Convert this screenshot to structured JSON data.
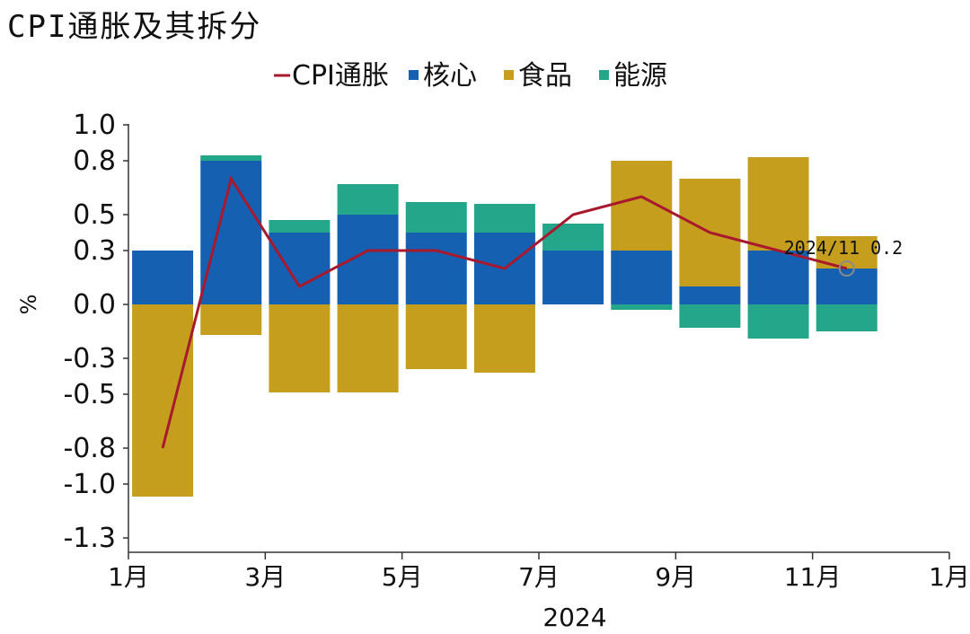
{
  "page": {
    "title": "CPI通胀及其拆分"
  },
  "colors": {
    "cpi": "#A8192E",
    "core": "#1660B2",
    "food": "#C59E1E",
    "energy": "#23A68A"
  },
  "chart_data": {
    "type": "bar",
    "stacked": true,
    "title": "CPI通胀及其拆分",
    "ylabel": "%",
    "xlabel": "2024",
    "ylim": [
      -1.3,
      1.0
    ],
    "yticks": [
      "1.0",
      "0.8",
      "0.5",
      "0.3",
      "0.0",
      "-0.3",
      "-0.5",
      "-0.8",
      "-1.0",
      "-1.3"
    ],
    "ytick_values": [
      1.0,
      0.8,
      0.5,
      0.3,
      0.0,
      -0.3,
      -0.5,
      -0.8,
      -1.0,
      -1.3
    ],
    "xticks": [
      "1月",
      "3月",
      "5月",
      "7月",
      "9月",
      "11月",
      "1月"
    ],
    "legend_position": "top",
    "grid": false,
    "categories": [
      "2024-01",
      "2024-02",
      "2024-03",
      "2024-04",
      "2024-05",
      "2024-06",
      "2024-07",
      "2024-08",
      "2024-09",
      "2024-10",
      "2024-11"
    ],
    "series": [
      {
        "name": "CPI通胀",
        "kind": "line",
        "color": "#A8192E",
        "values": [
          -0.8,
          0.7,
          0.1,
          0.3,
          0.3,
          0.2,
          0.5,
          0.6,
          0.4,
          0.3,
          0.2
        ]
      },
      {
        "name": "核心",
        "kind": "bar",
        "color": "#1660B2",
        "values": [
          0.3,
          0.8,
          0.4,
          0.5,
          0.4,
          0.4,
          0.3,
          0.3,
          0.1,
          0.3,
          0.2
        ]
      },
      {
        "name": "食品",
        "kind": "bar",
        "color": "#C59E1E",
        "values": [
          -1.07,
          -0.17,
          -0.49,
          -0.49,
          -0.36,
          -0.38,
          0.0,
          0.5,
          0.6,
          0.52,
          0.18
        ]
      },
      {
        "name": "能源",
        "kind": "bar",
        "color": "#23A68A",
        "values": [
          0.0,
          0.03,
          0.07,
          0.17,
          0.17,
          0.16,
          0.15,
          -0.03,
          -0.13,
          -0.19,
          -0.15
        ]
      }
    ],
    "annotation": {
      "label": "2024/11  0.2",
      "x": "2024-11",
      "y": 0.2
    }
  }
}
